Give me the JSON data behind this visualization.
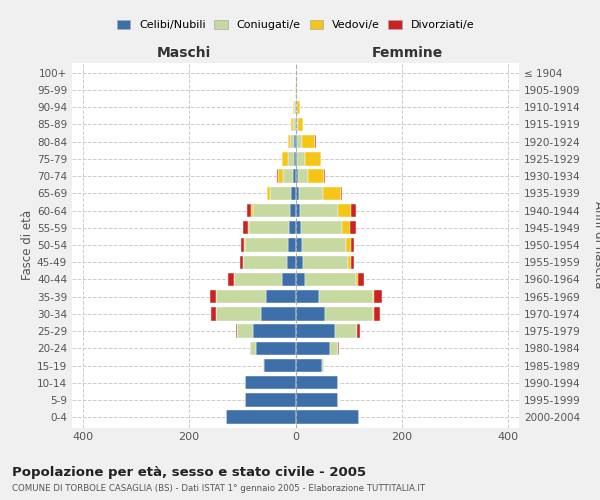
{
  "age_groups": [
    "0-4",
    "5-9",
    "10-14",
    "15-19",
    "20-24",
    "25-29",
    "30-34",
    "35-39",
    "40-44",
    "45-49",
    "50-54",
    "55-59",
    "60-64",
    "65-69",
    "70-74",
    "75-79",
    "80-84",
    "85-89",
    "90-94",
    "95-99",
    "100+"
  ],
  "birth_years": [
    "2000-2004",
    "1995-1999",
    "1990-1994",
    "1985-1989",
    "1980-1984",
    "1975-1979",
    "1970-1974",
    "1965-1969",
    "1960-1964",
    "1955-1959",
    "1950-1954",
    "1945-1949",
    "1940-1944",
    "1935-1939",
    "1930-1934",
    "1925-1929",
    "1920-1924",
    "1915-1919",
    "1910-1914",
    "1905-1909",
    "≤ 1904"
  ],
  "maschi": {
    "celibi": [
      130,
      95,
      95,
      60,
      75,
      80,
      65,
      55,
      25,
      16,
      14,
      12,
      10,
      8,
      5,
      3,
      2,
      1,
      1,
      0,
      0
    ],
    "coniugati": [
      0,
      0,
      0,
      2,
      10,
      30,
      85,
      95,
      90,
      82,
      80,
      75,
      70,
      40,
      18,
      12,
      8,
      4,
      2,
      1,
      0
    ],
    "vedovi": [
      0,
      0,
      0,
      0,
      0,
      0,
      0,
      0,
      1,
      1,
      2,
      3,
      4,
      5,
      10,
      10,
      5,
      3,
      1,
      0,
      0
    ],
    "divorziati": [
      0,
      0,
      0,
      0,
      1,
      2,
      8,
      10,
      10,
      5,
      6,
      8,
      8,
      1,
      1,
      0,
      0,
      0,
      0,
      0,
      0
    ]
  },
  "femmine": {
    "nubili": [
      120,
      80,
      80,
      50,
      65,
      75,
      55,
      45,
      18,
      14,
      12,
      10,
      8,
      6,
      4,
      2,
      2,
      1,
      1,
      0,
      0
    ],
    "coniugate": [
      0,
      0,
      0,
      3,
      15,
      40,
      90,
      100,
      95,
      85,
      82,
      78,
      72,
      45,
      20,
      15,
      10,
      4,
      2,
      1,
      0
    ],
    "vedove": [
      0,
      0,
      0,
      0,
      0,
      1,
      2,
      2,
      5,
      5,
      10,
      15,
      25,
      35,
      30,
      30,
      25,
      10,
      5,
      2,
      0
    ],
    "divorziate": [
      0,
      0,
      0,
      0,
      2,
      5,
      12,
      15,
      10,
      5,
      5,
      10,
      8,
      2,
      2,
      1,
      1,
      0,
      0,
      0,
      0
    ]
  },
  "colors": {
    "celibi": "#3d6fa8",
    "coniugati": "#c5d9a0",
    "vedovi": "#f5c518",
    "divorziati": "#cc2222"
  },
  "xlim": 420,
  "title": "Popolazione per età, sesso e stato civile - 2005",
  "subtitle": "COMUNE DI TORBOLE CASAGLIA (BS) - Dati ISTAT 1° gennaio 2005 - Elaborazione TUTTITALIA.IT",
  "ylabel_left": "Fasce di età",
  "ylabel_right": "Anni di nascita",
  "xlabel_maschi": "Maschi",
  "xlabel_femmine": "Femmine",
  "legend_labels": [
    "Celibi/Nubili",
    "Coniugati/e",
    "Vedovi/e",
    "Divorziati/e"
  ],
  "bg_color": "#f0f0f0",
  "plot_bg_color": "#ffffff"
}
